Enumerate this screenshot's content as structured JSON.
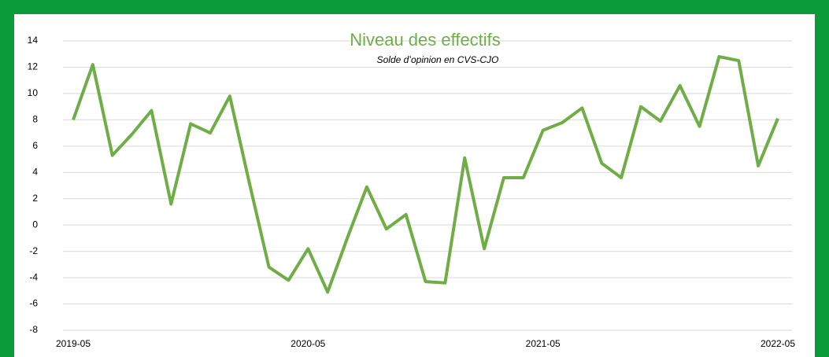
{
  "chart_data": {
    "type": "line",
    "title": "Niveau des effectifs",
    "subtitle": "Solde d’opinion en CVS-CJO",
    "categories": [
      "2019-05",
      null,
      null,
      null,
      null,
      null,
      null,
      null,
      null,
      null,
      null,
      null,
      "2020-05",
      null,
      null,
      null,
      null,
      null,
      null,
      null,
      null,
      null,
      null,
      null,
      "2021-05",
      null,
      null,
      null,
      null,
      null,
      null,
      null,
      null,
      null,
      null,
      null,
      "2022-05"
    ],
    "values": [
      8.0,
      12.2,
      5.3,
      6.9,
      8.7,
      1.6,
      7.7,
      7.0,
      9.8,
      3.2,
      -3.2,
      -4.2,
      -1.8,
      -5.1,
      -1.0,
      2.9,
      -0.3,
      0.8,
      -4.3,
      -4.4,
      5.1,
      -1.8,
      3.6,
      3.6,
      7.2,
      7.8,
      8.9,
      4.7,
      3.6,
      9.0,
      7.9,
      10.6,
      7.5,
      12.8,
      12.5,
      4.5,
      8.1
    ],
    "color": "#70ad47",
    "ylim": [
      -8,
      14
    ],
    "yticks": [
      -8,
      -6,
      -4,
      -2,
      0,
      2,
      4,
      6,
      8,
      10,
      12,
      14
    ],
    "grid": true
  }
}
